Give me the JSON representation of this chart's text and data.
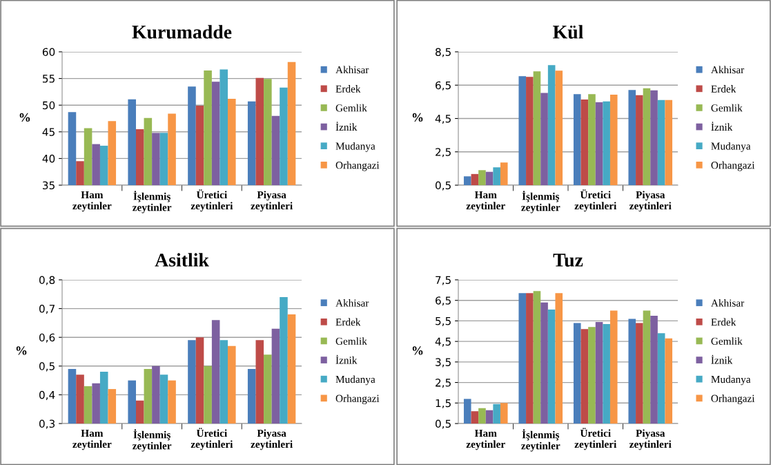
{
  "chart_data": [
    {
      "type": "bar",
      "title": "Kurumadde",
      "ylabel": "%",
      "categories": [
        "Ham\nzeytinler",
        "İşlenmiş\nzeytinler",
        "Üretici\nzeytinleri",
        "Piyasa\nzeytinleri"
      ],
      "ylim": [
        35,
        60
      ],
      "yticks": [
        35,
        40,
        45,
        50,
        55,
        60
      ],
      "grid": "y",
      "legend": "right",
      "series": [
        {
          "name": "Akhisar",
          "color": "#4a7ebb",
          "values": [
            48.7,
            51.1,
            53.5,
            50.7
          ]
        },
        {
          "name": "Erdek",
          "color": "#be4b48",
          "values": [
            39.5,
            45.5,
            49.9,
            55.1
          ]
        },
        {
          "name": "Gemlik",
          "color": "#98b954",
          "values": [
            45.7,
            47.6,
            56.5,
            54.9
          ]
        },
        {
          "name": "İznik",
          "color": "#7d60a0",
          "values": [
            42.7,
            44.8,
            54.4,
            48.0
          ]
        },
        {
          "name": "Mudanya",
          "color": "#46aac5",
          "values": [
            42.4,
            44.8,
            56.7,
            53.3
          ]
        },
        {
          "name": "Orhangazi",
          "color": "#f79646",
          "values": [
            47.0,
            48.4,
            51.2,
            58.1
          ]
        }
      ]
    },
    {
      "type": "bar",
      "title": "Kül",
      "ylabel": "%",
      "categories": [
        "Ham\nzeytinler",
        "İşlenmiş\nzeytinler",
        "Üretici\nzeytinleri",
        "Piyasa\nzeytinleri"
      ],
      "ylim": [
        0.5,
        8.5
      ],
      "yticks": [
        {
          "value": 0.5,
          "label": "0,5"
        },
        {
          "value": 2.5,
          "label": "2,5"
        },
        {
          "value": 4.5,
          "label": "4,5"
        },
        {
          "value": 6.5,
          "label": "6,5"
        },
        {
          "value": 8.5,
          "label": "8,5"
        }
      ],
      "grid": "y",
      "legend": "right",
      "series": [
        {
          "name": "Akhisar",
          "color": "#4a7ebb",
          "values": [
            1.03,
            7.04,
            5.96,
            6.21
          ]
        },
        {
          "name": "Erdek",
          "color": "#be4b48",
          "values": [
            1.17,
            7.0,
            5.64,
            5.9
          ]
        },
        {
          "name": "Gemlik",
          "color": "#98b954",
          "values": [
            1.4,
            7.33,
            5.96,
            6.31
          ]
        },
        {
          "name": "İznik",
          "color": "#7d60a0",
          "values": [
            1.3,
            6.03,
            5.47,
            6.19
          ]
        },
        {
          "name": "Mudanya",
          "color": "#46aac5",
          "values": [
            1.57,
            7.7,
            5.53,
            5.61
          ]
        },
        {
          "name": "Orhangazi",
          "color": "#f79646",
          "values": [
            1.86,
            7.37,
            5.93,
            5.61
          ]
        }
      ]
    },
    {
      "type": "bar",
      "title": "Asitlik",
      "ylabel": "%",
      "categories": [
        "Ham\nzeytinler",
        "İşlenmiş\nzeytinler",
        "Üretici\nzeytinleri",
        "Piyasa\nzeytinleri"
      ],
      "ylim": [
        0.3,
        0.8
      ],
      "yticks": [
        {
          "value": 0.3,
          "label": "0,3"
        },
        {
          "value": 0.4,
          "label": "0,4"
        },
        {
          "value": 0.5,
          "label": "0,5"
        },
        {
          "value": 0.6,
          "label": "0,6"
        },
        {
          "value": 0.7,
          "label": "0,7"
        },
        {
          "value": 0.8,
          "label": "0,8"
        }
      ],
      "grid": "y",
      "legend": "right",
      "series": [
        {
          "name": "Akhisar",
          "color": "#4a7ebb",
          "values": [
            0.49,
            0.45,
            0.59,
            0.49
          ]
        },
        {
          "name": "Erdek",
          "color": "#be4b48",
          "values": [
            0.47,
            0.38,
            0.6,
            0.59
          ]
        },
        {
          "name": "Gemlik",
          "color": "#98b954",
          "values": [
            0.43,
            0.49,
            0.5,
            0.54
          ]
        },
        {
          "name": "İznik",
          "color": "#7d60a0",
          "values": [
            0.44,
            0.5,
            0.66,
            0.63
          ]
        },
        {
          "name": "Mudanya",
          "color": "#46aac5",
          "values": [
            0.48,
            0.47,
            0.59,
            0.74
          ]
        },
        {
          "name": "Orhangazi",
          "color": "#f79646",
          "values": [
            0.42,
            0.45,
            0.57,
            0.68
          ]
        }
      ]
    },
    {
      "type": "bar",
      "title": "Tuz",
      "ylabel": "%",
      "categories": [
        "Ham\nzeytinler",
        "İşlenmiş\nzeytinler",
        "Üretici\nzeytinleri",
        "Piyasa\nzeytinleri"
      ],
      "ylim": [
        0.5,
        7.5
      ],
      "yticks": [
        {
          "value": 0.5,
          "label": "0,5"
        },
        {
          "value": 1.5,
          "label": "1,5"
        },
        {
          "value": 2.5,
          "label": "2,5"
        },
        {
          "value": 3.5,
          "label": "3,5"
        },
        {
          "value": 4.5,
          "label": "4,5"
        },
        {
          "value": 5.5,
          "label": "5,5"
        },
        {
          "value": 6.5,
          "label": "6,5"
        },
        {
          "value": 7.5,
          "label": "7,5"
        }
      ],
      "grid": "y",
      "legend": "right",
      "series": [
        {
          "name": "Akhisar",
          "color": "#4a7ebb",
          "values": [
            1.7,
            6.85,
            5.4,
            5.6
          ]
        },
        {
          "name": "Erdek",
          "color": "#be4b48",
          "values": [
            1.1,
            6.85,
            5.1,
            5.4
          ]
        },
        {
          "name": "Gemlik",
          "color": "#98b954",
          "values": [
            1.25,
            6.95,
            5.2,
            6.0
          ]
        },
        {
          "name": "İznik",
          "color": "#7d60a0",
          "values": [
            1.15,
            6.4,
            5.45,
            5.75
          ]
        },
        {
          "name": "Mudanya",
          "color": "#46aac5",
          "values": [
            1.45,
            6.05,
            5.35,
            4.9
          ]
        },
        {
          "name": "Orhangazi",
          "color": "#f79646",
          "values": [
            1.5,
            6.85,
            6.0,
            4.65
          ]
        }
      ]
    }
  ]
}
